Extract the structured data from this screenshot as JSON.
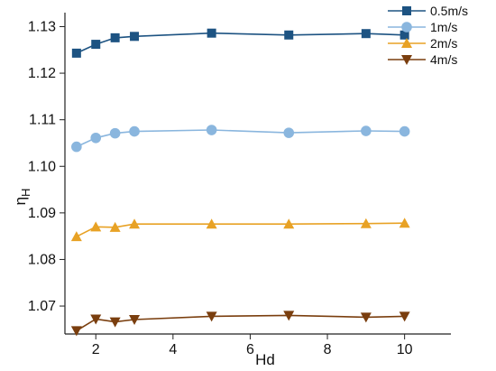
{
  "chart_data": {
    "type": "line",
    "title": "",
    "xlabel": "Hd",
    "ylabel_main": "η",
    "ylabel_sub": "H",
    "xlim": [
      1.2,
      11.2
    ],
    "ylim": [
      1.064,
      1.133
    ],
    "xticks": [
      2,
      4,
      6,
      8,
      10
    ],
    "yticks": [
      1.07,
      1.08,
      1.09,
      1.1,
      1.11,
      1.12,
      1.13
    ],
    "ytick_labels": [
      "1.07",
      "1.08",
      "1.09",
      "1.10",
      "1.11",
      "1.12",
      "1.13"
    ],
    "grid": false,
    "legend_position": "top-right",
    "x": [
      1.5,
      2,
      2.5,
      3,
      5,
      7,
      9,
      10
    ],
    "series": [
      {
        "name": "0.5m/s",
        "marker": "square",
        "color": "#1d5382",
        "values": [
          1.1243,
          1.1262,
          1.1276,
          1.1279,
          1.1286,
          1.1282,
          1.1285,
          1.1282
        ]
      },
      {
        "name": "1m/s",
        "marker": "circle",
        "color": "#8ab6de",
        "values": [
          1.1042,
          1.1061,
          1.1071,
          1.1075,
          1.1078,
          1.1072,
          1.1076,
          1.1075
        ]
      },
      {
        "name": "2m/s",
        "marker": "triangle-up",
        "color": "#e8a225",
        "values": [
          1.0849,
          1.087,
          1.0869,
          1.0876,
          1.0876,
          1.0876,
          1.0877,
          1.0878
        ]
      },
      {
        "name": "4m/s",
        "marker": "triangle-down",
        "color": "#7a3e0e",
        "values": [
          1.0647,
          1.0672,
          1.0666,
          1.0671,
          1.0678,
          1.068,
          1.0676,
          1.0678
        ]
      }
    ]
  }
}
